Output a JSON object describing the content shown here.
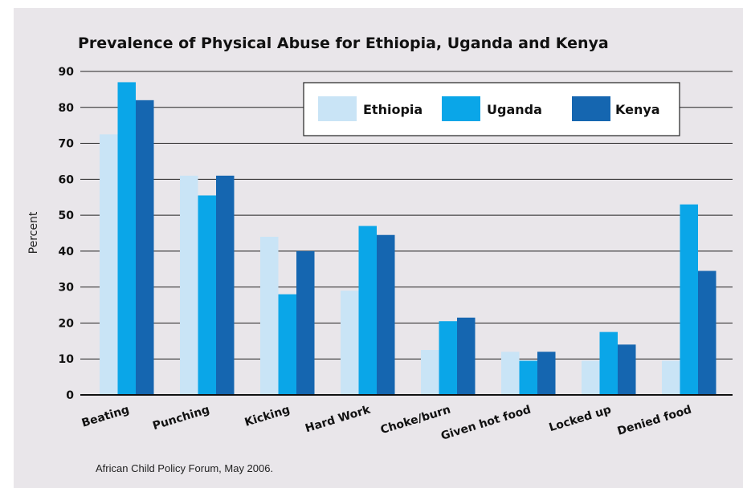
{
  "colors": {
    "panel_bg": "#e9e6ea",
    "ethiopia": "#c9e4f6",
    "uganda": "#0aa6e8",
    "kenya": "#1566b0",
    "gridline": "#222222"
  },
  "chart_data": {
    "type": "bar",
    "title": "Prevalence of Physical Abuse for Ethiopia, Uganda and Kenya",
    "xlabel": "",
    "ylabel": "Percent",
    "ylim": [
      0,
      90
    ],
    "yticks": [
      "0",
      "10",
      "20",
      "30",
      "40",
      "50",
      "60",
      "70",
      "80",
      "90"
    ],
    "grid": true,
    "legend_position": "top-right",
    "categories": [
      "Beating",
      "Punching",
      "Kicking",
      "Hard Work",
      "Choke/burn",
      "Given hot food",
      "Locked up",
      "Denied food"
    ],
    "series": [
      {
        "name": "Ethiopia",
        "color": "#c9e4f6",
        "values": [
          72.5,
          61,
          44,
          29,
          12.5,
          12,
          9.5,
          9.5
        ]
      },
      {
        "name": "Uganda",
        "color": "#0aa6e8",
        "values": [
          87,
          55.5,
          28,
          47,
          20.5,
          9.5,
          17.5,
          53
        ]
      },
      {
        "name": "Kenya",
        "color": "#1566b0",
        "values": [
          82,
          61,
          40,
          44.5,
          21.5,
          12,
          14,
          34.5
        ]
      }
    ],
    "source": "African Child Policy Forum, May 2006."
  }
}
